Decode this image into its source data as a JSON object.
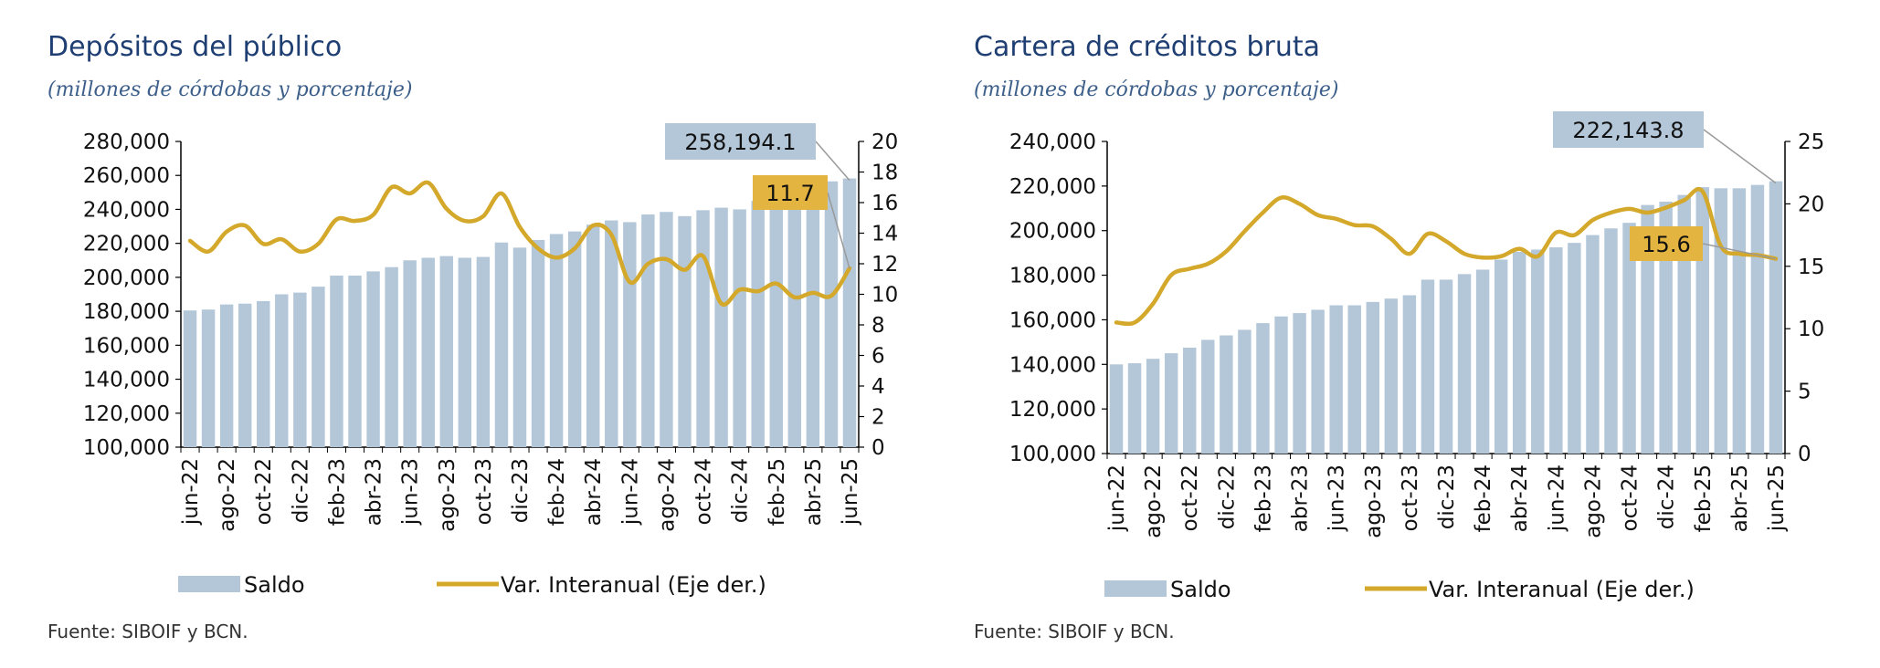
{
  "chart_data": [
    {
      "type": "bar",
      "title": "Depósitos del público",
      "subtitle": "(millones de córdobas y porcentaje)",
      "source": "Fuente: SIBOIF y BCN.",
      "colors": {
        "bar": "#b3c7d9",
        "line": "#d4a82a",
        "callout_bar": "#b3c7d9",
        "callout_line": "#e3b43f"
      },
      "categories": [
        "jun-22",
        "jul-22",
        "ago-22",
        "sep-22",
        "oct-22",
        "nov-22",
        "dic-22",
        "ene-23",
        "feb-23",
        "mar-23",
        "abr-23",
        "may-23",
        "jun-23",
        "jul-23",
        "ago-23",
        "sep-23",
        "oct-23",
        "nov-23",
        "dic-23",
        "ene-24",
        "feb-24",
        "mar-24",
        "abr-24",
        "may-24",
        "jun-24",
        "jul-24",
        "ago-24",
        "sep-24",
        "oct-24",
        "nov-24",
        "dic-24",
        "ene-25",
        "feb-25",
        "mar-25",
        "abr-25",
        "may-25",
        "jun-25"
      ],
      "tick_labels": [
        "jun-22",
        "ago-22",
        "oct-22",
        "dic-22",
        "feb-23",
        "abr-23",
        "jun-23",
        "ago-23",
        "oct-23",
        "dic-23",
        "feb-24",
        "abr-24",
        "jun-24",
        "ago-24",
        "oct-24",
        "dic-24",
        "feb-25",
        "abr-25",
        "jun-25"
      ],
      "y_ticks": [
        "100,000",
        "120,000",
        "140,000",
        "160,000",
        "180,000",
        "200,000",
        "220,000",
        "240,000",
        "260,000",
        "280,000"
      ],
      "y2_ticks": [
        "0",
        "2",
        "4",
        "6",
        "8",
        "10",
        "12",
        "14",
        "16",
        "18",
        "20"
      ],
      "ylim": [
        100000,
        280000
      ],
      "y2lim": [
        0,
        20
      ],
      "series": [
        {
          "name": "Saldo",
          "type": "bar",
          "values": [
            180500,
            181000,
            184000,
            184500,
            186000,
            190000,
            191000,
            194500,
            201000,
            201000,
            203500,
            206000,
            210000,
            211500,
            212500,
            211500,
            212000,
            220500,
            217500,
            222000,
            225500,
            227000,
            231000,
            233500,
            232500,
            237000,
            238500,
            236000,
            239500,
            241000,
            240000,
            245000,
            244500,
            248500,
            251000,
            256500,
            258194.1
          ]
        },
        {
          "name": "Var. Interanual (Eje der.)",
          "type": "line",
          "axis": "right",
          "values": [
            13.5,
            12.8,
            14.1,
            14.5,
            13.3,
            13.6,
            12.8,
            13.3,
            14.9,
            14.8,
            15.2,
            17.0,
            16.6,
            17.3,
            15.6,
            14.8,
            15.1,
            16.6,
            14.4,
            13.0,
            12.4,
            13.0,
            14.5,
            13.9,
            10.8,
            12.0,
            12.3,
            11.6,
            12.5,
            9.4,
            10.3,
            10.2,
            10.7,
            9.8,
            10.1,
            9.9,
            11.7
          ]
        }
      ],
      "callouts": {
        "bar": "258,194.1",
        "line": "11.7"
      },
      "legend": {
        "bar": "Saldo",
        "line": "Var. Interanual (Eje der.)"
      }
    },
    {
      "type": "bar",
      "title": "Cartera de créditos bruta",
      "subtitle": "(millones de córdobas y porcentaje)",
      "source": "Fuente: SIBOIF y BCN.",
      "colors": {
        "bar": "#b3c7d9",
        "line": "#d4a82a",
        "callout_bar": "#b3c7d9",
        "callout_line": "#e3b43f"
      },
      "categories": [
        "jun-22",
        "jul-22",
        "ago-22",
        "sep-22",
        "oct-22",
        "nov-22",
        "dic-22",
        "ene-23",
        "feb-23",
        "mar-23",
        "abr-23",
        "may-23",
        "jun-23",
        "jul-23",
        "ago-23",
        "sep-23",
        "oct-23",
        "nov-23",
        "dic-23",
        "ene-24",
        "feb-24",
        "mar-24",
        "abr-24",
        "may-24",
        "jun-24",
        "jul-24",
        "ago-24",
        "sep-24",
        "oct-24",
        "nov-24",
        "dic-24",
        "ene-25",
        "feb-25",
        "mar-25",
        "abr-25",
        "may-25",
        "jun-25"
      ],
      "tick_labels": [
        "jun-22",
        "ago-22",
        "oct-22",
        "dic-22",
        "feb-23",
        "abr-23",
        "jun-23",
        "ago-23",
        "oct-23",
        "dic-23",
        "feb-24",
        "abr-24",
        "jun-24",
        "ago-24",
        "oct-24",
        "dic-24",
        "feb-25",
        "abr-25",
        "jun-25"
      ],
      "y_ticks": [
        "100,000",
        "120,000",
        "140,000",
        "160,000",
        "180,000",
        "200,000",
        "220,000",
        "240,000"
      ],
      "y2_ticks": [
        "0",
        "5",
        "10",
        "15",
        "20",
        "25"
      ],
      "ylim": [
        100000,
        240000
      ],
      "y2lim": [
        0,
        25
      ],
      "series": [
        {
          "name": "Saldo",
          "type": "bar",
          "values": [
            140000,
            140500,
            142500,
            145000,
            147500,
            151000,
            153000,
            155500,
            158500,
            161500,
            163000,
            164500,
            166500,
            166500,
            168000,
            169500,
            171000,
            178000,
            178000,
            180500,
            182500,
            187000,
            190500,
            191500,
            192500,
            194500,
            198000,
            201000,
            203500,
            211500,
            213000,
            216000,
            219500,
            219000,
            219000,
            220500,
            222143.8
          ]
        },
        {
          "name": "Var. Interanual (Eje der.)",
          "type": "line",
          "axis": "right",
          "values": [
            10.5,
            10.5,
            12.0,
            14.3,
            14.8,
            15.2,
            16.2,
            17.8,
            19.3,
            20.5,
            20.0,
            19.1,
            18.8,
            18.3,
            18.2,
            17.2,
            16.0,
            17.6,
            17.0,
            16.0,
            15.7,
            15.8,
            16.4,
            15.8,
            17.7,
            17.5,
            18.7,
            19.3,
            19.6,
            19.3,
            19.7,
            20.3,
            21.0,
            16.6,
            16.0,
            15.9,
            15.6
          ]
        }
      ],
      "callouts": {
        "bar": "222,143.8",
        "line": "15.6"
      },
      "legend": {
        "bar": "Saldo",
        "line": "Var. Interanual (Eje der.)"
      }
    }
  ]
}
